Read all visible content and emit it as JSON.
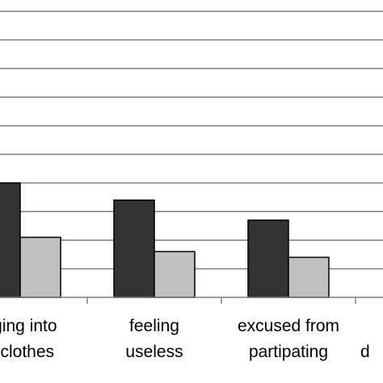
{
  "chart_data": {
    "type": "bar",
    "categories": [
      [
        "nging into",
        "h clothes"
      ],
      [
        "feeling",
        "useless"
      ],
      [
        "excused from",
        "partipating"
      ],
      [
        "",
        "d"
      ]
    ],
    "series": [
      {
        "color": "#333333",
        "values": [
          40,
          34,
          27,
          null
        ]
      },
      {
        "color": "#c0c0c0",
        "values": [
          21,
          16,
          14,
          null
        ]
      }
    ],
    "ylim": [
      0,
      100
    ],
    "gridlines": [
      10,
      20,
      30,
      40,
      50,
      60,
      70,
      80,
      90,
      100
    ],
    "grid": true,
    "legend": "none"
  }
}
